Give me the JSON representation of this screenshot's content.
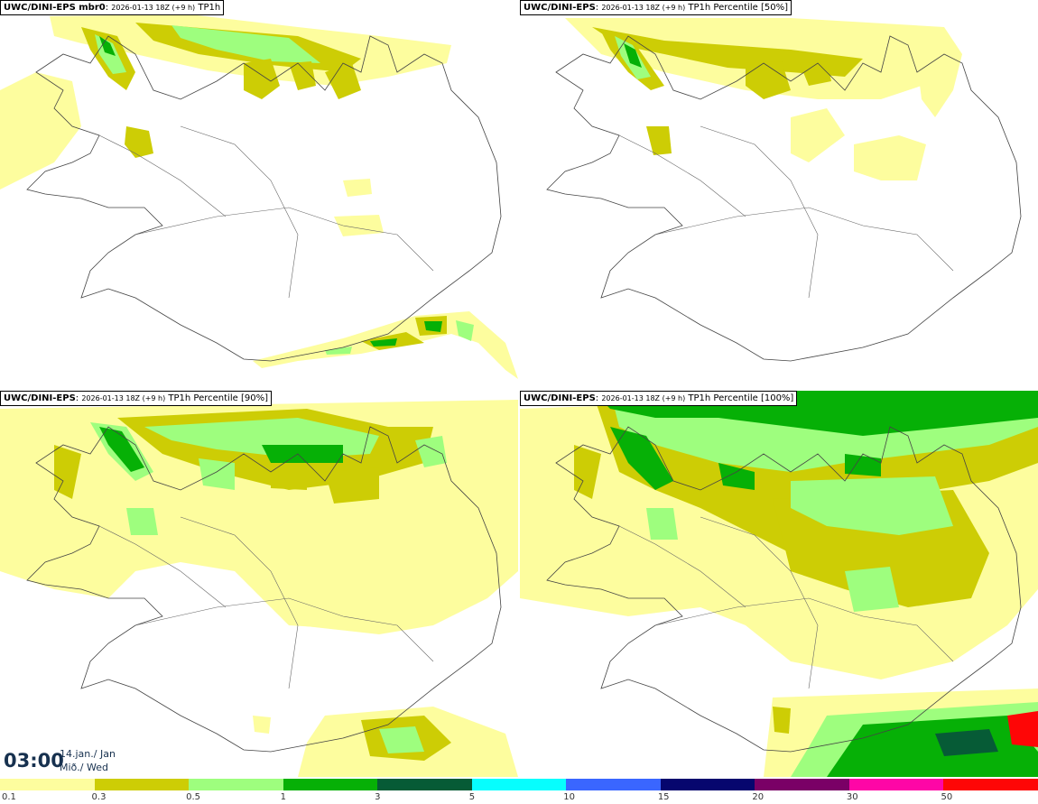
{
  "panels": [
    {
      "model": "UWC/DINI-EPS mbr0",
      "run": "2026-01-13 18Z (+9 h)",
      "field": "TP1h"
    },
    {
      "model": "UWC/DINI-EPS",
      "run": "2026-01-13 18Z (+9 h)",
      "field": "TP1h Percentile [50%]"
    },
    {
      "model": "UWC/DINI-EPS",
      "run": "2026-01-13 18Z (+9 h)",
      "field": "TP1h Percentile [90%]"
    },
    {
      "model": "UWC/DINI-EPS",
      "run": "2026-01-13 18Z (+9 h)",
      "field": "TP1h Percentile [100%]"
    }
  ],
  "valid_time": {
    "time": "03:00",
    "date_line1": "14.jan./ Jan",
    "date_line2": "Mið./ Wed"
  },
  "legend": [
    {
      "label": "0.1",
      "color": "#fdfd9e"
    },
    {
      "label": "0.3",
      "color": "#cdcd05"
    },
    {
      "label": "0.5",
      "color": "#9efe7e"
    },
    {
      "label": "1",
      "color": "#06b006"
    },
    {
      "label": "3",
      "color": "#065b36"
    },
    {
      "label": "5",
      "color": "#06fefe"
    },
    {
      "label": "10",
      "color": "#3a66ff"
    },
    {
      "label": "15",
      "color": "#06066e"
    },
    {
      "label": "20",
      "color": "#7a0066"
    },
    {
      "label": "30",
      "color": "#fe06a6"
    },
    {
      "label": "50",
      "color": "#fe0606"
    }
  ]
}
